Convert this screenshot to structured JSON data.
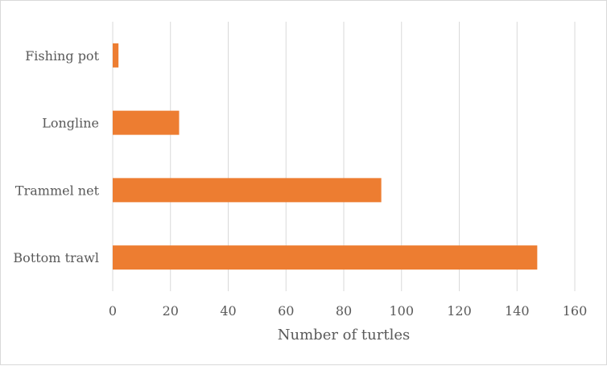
{
  "chart_data": {
    "type": "bar",
    "orientation": "horizontal",
    "title": "",
    "xlabel": "Number of turtles",
    "ylabel": "",
    "categories": [
      "Fishing pot",
      "Longline",
      "Trammel net",
      "Bottom trawl"
    ],
    "values": [
      2,
      23,
      93,
      147
    ],
    "xlim": [
      0,
      160
    ],
    "xticks": [
      0,
      20,
      40,
      60,
      80,
      100,
      120,
      140,
      160
    ],
    "grid": "vertical",
    "legend": "none",
    "colors": {
      "bar": "#ED7D31",
      "grid": "#d9d9d9",
      "text": "#595959"
    }
  }
}
